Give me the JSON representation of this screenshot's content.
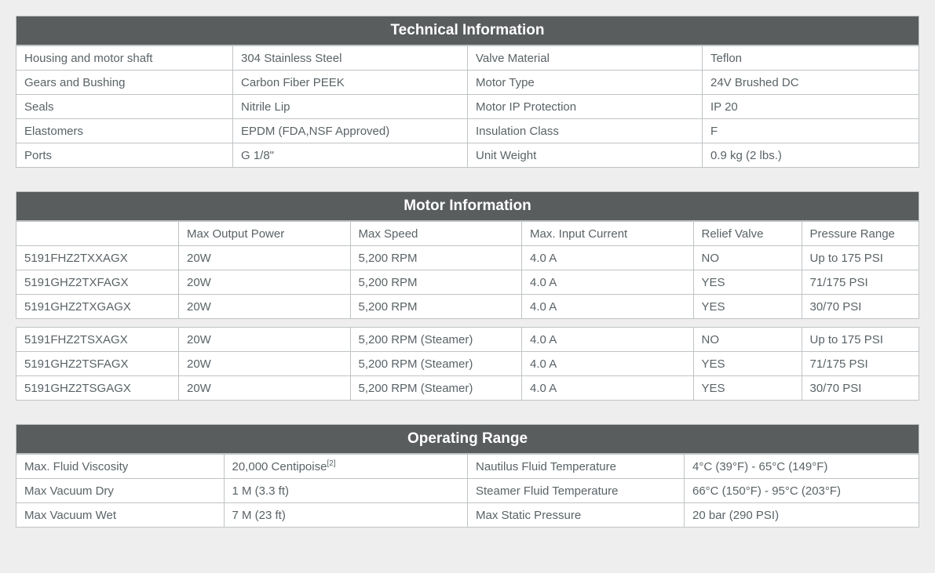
{
  "technical": {
    "title": "Technical Information",
    "rows": [
      [
        "Housing and motor shaft",
        "304 Stainless Steel",
        "Valve Material",
        "Teflon"
      ],
      [
        "Gears and Bushing",
        "Carbon Fiber PEEK",
        "Motor Type",
        "24V Brushed DC"
      ],
      [
        "Seals",
        "Nitrile Lip",
        "Motor IP Protection",
        "IP 20"
      ],
      [
        "Elastomers",
        "EPDM (FDA,NSF Approved)",
        "Insulation Class",
        "F"
      ],
      [
        "Ports",
        "G 1/8\"",
        "Unit Weight",
        "0.9 kg (2 lbs.)"
      ]
    ]
  },
  "motor": {
    "title": "Motor Information",
    "headers": [
      "",
      "Max Output Power",
      "Max Speed",
      "Max. Input Current",
      "Relief Valve",
      "Pressure Range"
    ],
    "group1": [
      [
        "5191FHZ2TXXAGX",
        "20W",
        "5,200 RPM",
        "4.0 A",
        "NO",
        "Up to 175 PSI"
      ],
      [
        "5191GHZ2TXFAGX",
        "20W",
        "5,200 RPM",
        "4.0 A",
        "YES",
        "71/175 PSI"
      ],
      [
        "5191GHZ2TXGAGX",
        "20W",
        "5,200 RPM",
        "4.0 A",
        "YES",
        "30/70 PSI"
      ]
    ],
    "group2": [
      [
        "5191FHZ2TSXAGX",
        "20W",
        "5,200 RPM (Steamer)",
        "4.0 A",
        "NO",
        "Up to 175 PSI"
      ],
      [
        "5191GHZ2TSFAGX",
        "20W",
        "5,200 RPM (Steamer)",
        "4.0 A",
        "YES",
        "71/175 PSI"
      ],
      [
        "5191GHZ2TSGAGX",
        "20W",
        "5,200 RPM (Steamer)",
        "4.0 A",
        "YES",
        "30/70 PSI"
      ]
    ]
  },
  "operating": {
    "title": "Operating Range",
    "rows": [
      [
        "Max. Fluid Viscosity",
        "20,000 Centipoise",
        "Nautilus Fluid Temperature",
        "4°C (39°F) - 65°C (149°F)"
      ],
      [
        "Max Vacuum Dry",
        "1 M (3.3 ft)",
        "Steamer Fluid Temperature",
        "66°C (150°F) - 95°C (203°F)"
      ],
      [
        "Max Vacuum Wet",
        "7 M (23 ft)",
        "Max Static Pressure",
        "20 bar (290 PSI)"
      ]
    ],
    "footnote": "[2]"
  },
  "colwidths": {
    "tech": [
      "24%",
      "26%",
      "26%",
      "24%"
    ],
    "motor": [
      "18%",
      "19%",
      "19%",
      "19%",
      "12%",
      "13%"
    ],
    "oper": [
      "23%",
      "27%",
      "24%",
      "26%"
    ]
  }
}
